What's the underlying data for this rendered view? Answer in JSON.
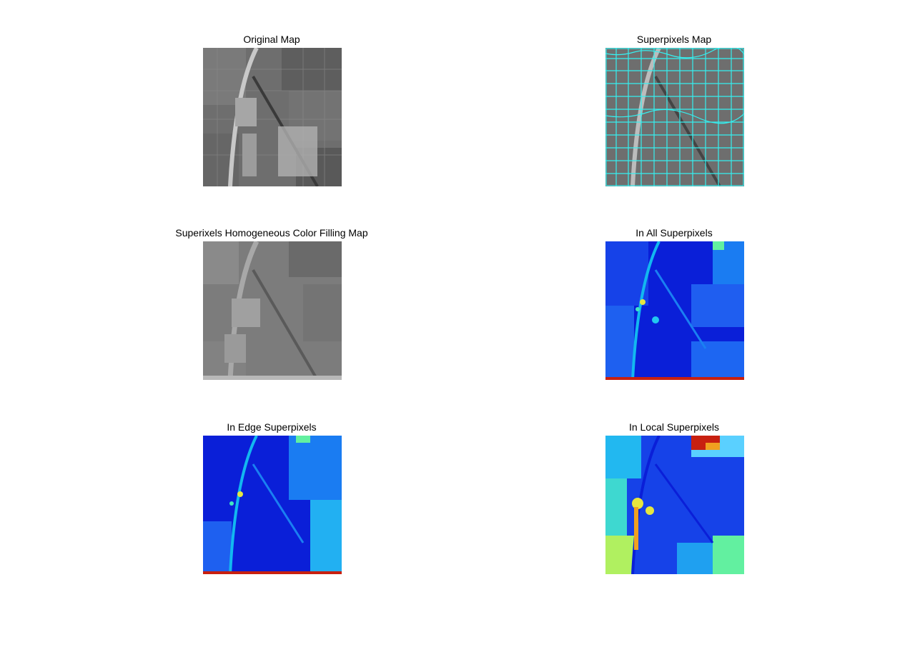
{
  "panels": [
    {
      "title": "Original Map",
      "colormap": "grayscale"
    },
    {
      "title": "Superpixels Map",
      "colormap": "grayscale-cyan-boundaries"
    },
    {
      "title": "Superixels Homogeneous Color Filling Map",
      "colormap": "grayscale"
    },
    {
      "title": "In All Superpixels",
      "colormap": "jet"
    },
    {
      "title": "In Edge Superpixels",
      "colormap": "jet"
    },
    {
      "title": "In Local Superpixels",
      "colormap": "jet"
    }
  ],
  "colors": {
    "background": "#ffffff",
    "boundary": "#35f0f0",
    "jet_low": "#0a1fd8",
    "jet_mid": "#12b8f0",
    "jet_high": "#c82010"
  }
}
